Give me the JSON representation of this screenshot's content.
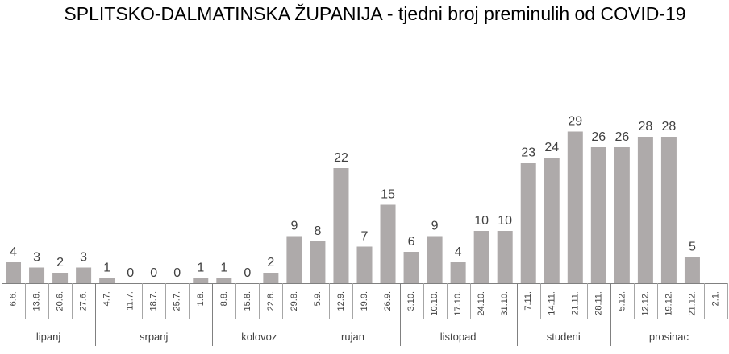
{
  "chart_data": {
    "type": "bar",
    "title": "SPLITSKO-DALMATINSKA ŽUPANIJA - tjedni broj preminulih od COVID-19",
    "categories": [
      "6.6.",
      "13.6.",
      "20.6.",
      "27.6.",
      "4.7.",
      "11.7.",
      "18.7.",
      "25.7.",
      "1.8.",
      "8.8.",
      "15.8.",
      "22.8.",
      "29.8.",
      "5.9.",
      "12.9.",
      "19.9.",
      "26.9.",
      "3.10.",
      "10.10.",
      "17.10.",
      "24.10.",
      "31.10.",
      "7.11.",
      "14.11.",
      "21.11.",
      "28.11.",
      "5.12.",
      "12.12.",
      "19.12.",
      "21.12.",
      "2.1."
    ],
    "values": [
      4,
      3,
      2,
      3,
      1,
      0,
      0,
      0,
      1,
      1,
      0,
      2,
      9,
      8,
      22,
      7,
      15,
      6,
      9,
      4,
      10,
      10,
      23,
      24,
      29,
      26,
      26,
      28,
      28,
      5,
      null
    ],
    "data_labels": [
      "4",
      "3",
      "2",
      "3",
      "1",
      "0",
      "0",
      "0",
      "1",
      "1",
      "0",
      "2",
      "9",
      "8",
      "22",
      "7",
      "15",
      "6",
      "9",
      "4",
      "10",
      "10",
      "23",
      "24",
      "29",
      "26",
      "26",
      "28",
      "28",
      "5",
      ""
    ],
    "months": [
      {
        "label": "lipanj",
        "start": 0,
        "count": 4
      },
      {
        "label": "srpanj",
        "start": 4,
        "count": 5
      },
      {
        "label": "kolovoz",
        "start": 9,
        "count": 4
      },
      {
        "label": "rujan",
        "start": 13,
        "count": 4
      },
      {
        "label": "listopad",
        "start": 17,
        "count": 5
      },
      {
        "label": "studeni",
        "start": 22,
        "count": 4
      },
      {
        "label": "prosinac",
        "start": 26,
        "count": 5
      }
    ],
    "bar_color": "#aeaaaa",
    "grid": false,
    "legend": "none"
  }
}
